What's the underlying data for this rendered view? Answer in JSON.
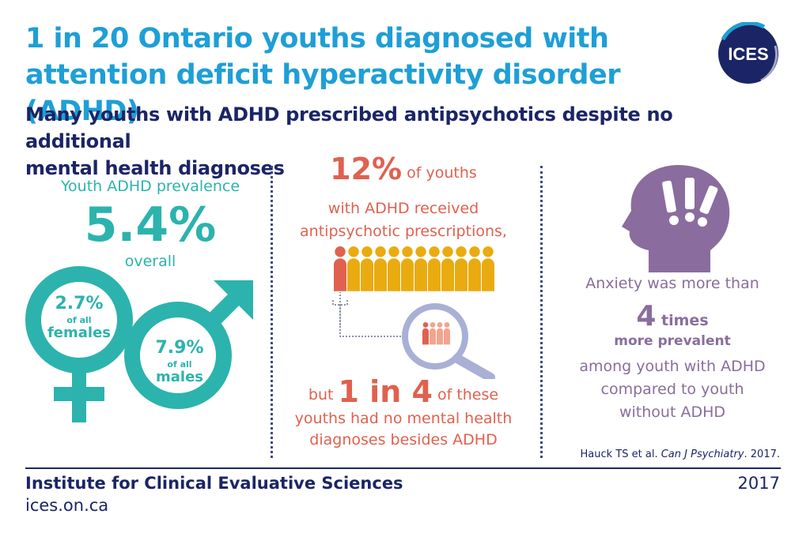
{
  "header": {
    "title_line1": "1 in 20 Ontario youths diagnosed with",
    "title_line2": "attention deficit hyperactivity disorder (ADHD)",
    "subtitle_line1": "Many youths with ADHD prescribed antipsychotics despite no additional",
    "subtitle_line2": "mental health diagnoses",
    "logo_text": "ICES"
  },
  "prevalence": {
    "label": "Youth ADHD prevalence",
    "value": "5.4%",
    "overall": "overall",
    "female_value": "2.7%",
    "female_of": "of all",
    "female_word": "females",
    "male_value": "7.9%",
    "male_of": "of all",
    "male_word": "males"
  },
  "antipsychotics": {
    "pct": "12%",
    "line1_rest": " of youths",
    "line2": "with ADHD received",
    "line3": "antipsychotic prescriptions,",
    "line4_pre": "but ",
    "line4_big": "1 in 4",
    "line4_post": " of these",
    "line5": "youths had no mental health",
    "line6": "diagnoses besides ADHD",
    "highlighted_fraction": 0.083
  },
  "anxiety": {
    "line1": "Anxiety was more than",
    "number": "4",
    "times": " times",
    "line3": "more prevalent",
    "line4": "among youth with ADHD",
    "line5": "compared to youth",
    "line6": "without ADHD"
  },
  "citation": {
    "authors": "Hauck TS et al. ",
    "journal": "Can J Psychiatry",
    "year": ". 2017."
  },
  "footer": {
    "org": "Institute for Clinical Evaluative Sciences",
    "url": "ices.on.ca",
    "year": "2017"
  },
  "colors": {
    "title": "#1e9fd6",
    "navy": "#1b2566",
    "teal": "#2cb3ad",
    "coral": "#e0614f",
    "gold": "#e9ab10",
    "purple": "#8a6d9e"
  }
}
